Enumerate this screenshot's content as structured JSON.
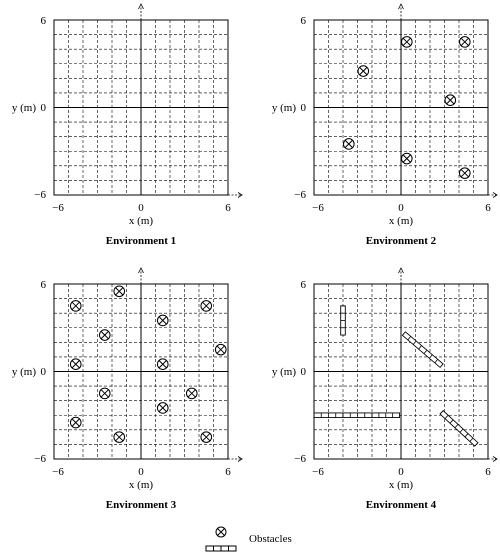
{
  "panels": [
    {
      "caption": "Environment 1",
      "xlabel": "x (m)",
      "ylabel": "y (m)",
      "x_ticks": [
        "−6",
        "0",
        "6"
      ],
      "y_ticks": [
        "6",
        "0",
        "−6"
      ],
      "xlim": [
        -6,
        6
      ],
      "ylim": [
        -6,
        6
      ],
      "grid": true,
      "obstacles": [],
      "walls": []
    },
    {
      "caption": "Environment 2",
      "xlabel": "x (m)",
      "ylabel": "y (m)",
      "x_ticks": [
        "−6",
        "0",
        "6"
      ],
      "y_ticks": [
        "6",
        "0",
        "−6"
      ],
      "xlim": [
        -6,
        6
      ],
      "ylim": [
        -6,
        6
      ],
      "grid": true,
      "obstacles": [
        {
          "x": 0.4,
          "y": 4.5
        },
        {
          "x": 4.4,
          "y": 4.5
        },
        {
          "x": -2.6,
          "y": 2.5
        },
        {
          "x": 3.4,
          "y": 0.5
        },
        {
          "x": -3.6,
          "y": -2.5
        },
        {
          "x": 0.4,
          "y": -3.5
        },
        {
          "x": 4.4,
          "y": -4.5
        }
      ],
      "walls": []
    },
    {
      "caption": "Environment 3",
      "xlabel": "x (m)",
      "ylabel": "y (m)",
      "x_ticks": [
        "−6",
        "0",
        "6"
      ],
      "y_ticks": [
        "6",
        "0",
        "−6"
      ],
      "xlim": [
        -6,
        6
      ],
      "ylim": [
        -6,
        6
      ],
      "grid": true,
      "obstacles": [
        {
          "x": -1.5,
          "y": 5.5
        },
        {
          "x": -4.5,
          "y": 4.5
        },
        {
          "x": 4.5,
          "y": 4.5
        },
        {
          "x": 1.5,
          "y": 3.5
        },
        {
          "x": -2.5,
          "y": 2.5
        },
        {
          "x": 5.5,
          "y": 1.5
        },
        {
          "x": -4.5,
          "y": 0.5
        },
        {
          "x": 1.5,
          "y": 0.5
        },
        {
          "x": -2.5,
          "y": -1.5
        },
        {
          "x": 3.5,
          "y": -1.5
        },
        {
          "x": 1.5,
          "y": -2.5
        },
        {
          "x": -4.5,
          "y": -3.5
        },
        {
          "x": -1.5,
          "y": -4.5
        },
        {
          "x": 4.5,
          "y": -4.5
        }
      ],
      "walls": []
    },
    {
      "caption": "Environment 4",
      "xlabel": "x (m)",
      "ylabel": "y (m)",
      "x_ticks": [
        "−6",
        "0",
        "6"
      ],
      "y_ticks": [
        "6",
        "0",
        "−6"
      ],
      "xlim": [
        -6,
        6
      ],
      "ylim": [
        -6,
        6
      ],
      "grid": true,
      "obstacles": [],
      "walls": [
        {
          "x1": -4.0,
          "y1": 4.5,
          "x2": -4.0,
          "y2": 2.5
        },
        {
          "x1": 0.2,
          "y1": 2.6,
          "x2": 2.8,
          "y2": 0.4
        },
        {
          "x1": -6.0,
          "y1": -3.0,
          "x2": -4.0,
          "y2": -3.0
        },
        {
          "x1": -4.0,
          "y1": -3.0,
          "x2": -2.0,
          "y2": -3.0
        },
        {
          "x1": -2.0,
          "y1": -3.0,
          "x2": -0.1,
          "y2": -3.0
        },
        {
          "x1": 2.8,
          "y1": -2.8,
          "x2": 5.2,
          "y2": -5.0
        }
      ]
    }
  ],
  "legend": {
    "obstacle_label": "Obstacles",
    "obstacle_icon": "circled-x-icon",
    "wall_icon": "wall-segment-icon"
  }
}
